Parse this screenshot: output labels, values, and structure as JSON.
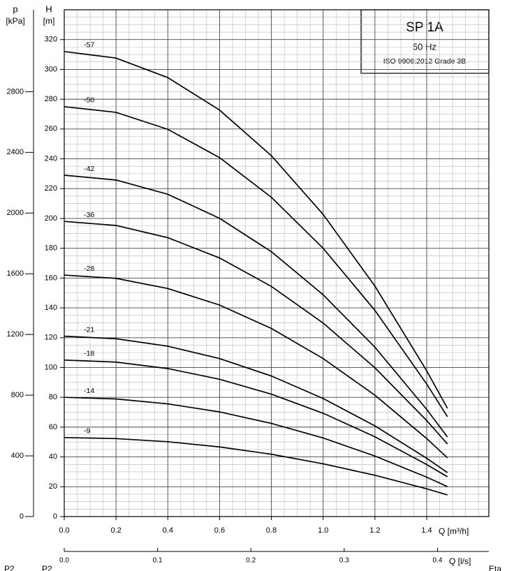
{
  "chart_data": {
    "type": "line",
    "title": "SP 1A",
    "subtitle": "50 Hz",
    "annotation": "ISO 9906:2012 Grade 3B",
    "ylabel": "H",
    "ylabel_unit": "[m]",
    "y2label": "p",
    "y2label_unit": "[kPa]",
    "xlabel": "Q [m³/h]",
    "x2label": "Q [l/s]",
    "footer_labels": [
      "P2",
      "P2",
      "Eta"
    ],
    "x": [
      0,
      0.2,
      0.4,
      0.6,
      0.8,
      1.0,
      1.2,
      1.4,
      1.48
    ],
    "series": [
      {
        "name": "-57",
        "color": "#000000",
        "values": [
          312,
          307.6,
          294.5,
          272.7,
          242.1,
          202.7,
          154.6,
          97.8,
          72.6
        ]
      },
      {
        "name": "-50",
        "color": "#000000",
        "values": [
          275,
          271.2,
          259.8,
          240.8,
          214.2,
          180.0,
          138.3,
          88.9,
          67
        ]
      },
      {
        "name": "-42",
        "color": "#000000",
        "values": [
          229,
          225.8,
          216.2,
          200.1,
          177.7,
          148.8,
          113.6,
          71.9,
          53.4
        ]
      },
      {
        "name": "-36",
        "color": "#000000",
        "values": [
          198,
          195.3,
          187.1,
          173.5,
          154.4,
          129.8,
          99.8,
          64.4,
          48.7
        ]
      },
      {
        "name": "-28",
        "color": "#000000",
        "values": [
          162,
          159.8,
          153.0,
          141.9,
          126.2,
          106.0,
          81.4,
          52.3,
          39.4
        ]
      },
      {
        "name": "-21",
        "color": "#000000",
        "values": [
          121,
          119.3,
          114.3,
          106.0,
          94.3,
          79.2,
          60.8,
          39.1,
          29.5
        ]
      },
      {
        "name": "-18",
        "color": "#000000",
        "values": [
          105,
          103.6,
          99.3,
          92.1,
          82.1,
          69.3,
          53.5,
          34.9,
          26.7
        ]
      },
      {
        "name": "-14",
        "color": "#000000",
        "values": [
          80,
          78.9,
          75.6,
          70.2,
          62.5,
          52.7,
          40.6,
          26.4,
          20.1
        ]
      },
      {
        "name": "-9",
        "color": "#000000",
        "values": [
          53,
          52.3,
          50.2,
          46.7,
          41.8,
          35.4,
          27.7,
          18.6,
          14.5
        ]
      }
    ],
    "xlim": [
      0,
      1.64
    ],
    "xticks": [
      {
        "value": 0,
        "label": "0.0"
      },
      0.2,
      0.4,
      0.6,
      0.8,
      {
        "value": 1,
        "label": "1.0"
      },
      1.2,
      1.4
    ],
    "x2lim": [
      0,
      0.455
    ],
    "x2ticks": [
      {
        "value": 0,
        "label": "0.0"
      },
      0.1,
      0.2,
      0.3,
      0.4
    ],
    "ylim": [
      0,
      340
    ],
    "yticks": [
      0,
      20,
      40,
      60,
      80,
      100,
      120,
      140,
      160,
      180,
      200,
      220,
      240,
      260,
      280,
      300,
      320
    ],
    "y2lim": [
      0,
      3340
    ],
    "y2ticks": [
      0,
      400,
      800,
      1200,
      1600,
      2000,
      2400,
      2800
    ],
    "grid": true
  }
}
